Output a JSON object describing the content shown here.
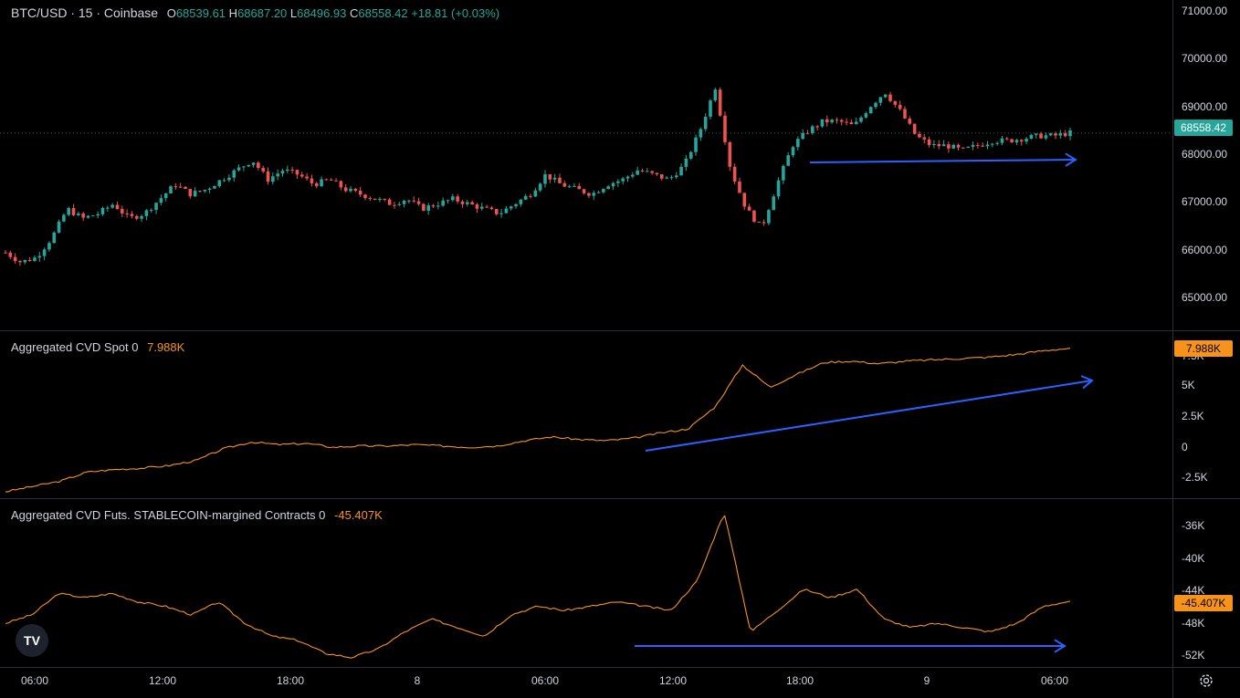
{
  "header": {
    "symbol": "BTC/USD · 15 · Coinbase",
    "o_label": "O",
    "o_value": "68539.61",
    "h_label": "H",
    "h_value": "68687.20",
    "l_label": "L",
    "l_value": "68496.93",
    "c_label": "C",
    "c_value": "68558.42",
    "change": "+18.81 (+0.03%)"
  },
  "price_axis": [
    "71000.00",
    "70000.00",
    "69000.00",
    "68000.00",
    "67000.00",
    "66000.00",
    "65000.00"
  ],
  "price_tag": "68558.42",
  "spot": {
    "title": "Aggregated CVD Spot 0",
    "value": "7.988K",
    "axis": [
      "7.5K",
      "5K",
      "2.5K",
      "0",
      "-2.5K"
    ],
    "tag": "7.988K"
  },
  "futs": {
    "title": "Aggregated CVD Futs. STABLECOIN-margined Contracts 0",
    "value": "-45.407K",
    "axis": [
      "-36K",
      "-40K",
      "-44K",
      "-48K",
      "-52K"
    ],
    "tag": "-45.407K"
  },
  "time_axis": [
    "06:00",
    "12:00",
    "18:00",
    "8",
    "06:00",
    "12:00",
    "18:00",
    "9",
    "06:00"
  ],
  "logo_text": "TV",
  "colors": {
    "up": "#26a69a",
    "down": "#ef5350",
    "cvd": "#f7931a",
    "arrow": "#2962ff"
  },
  "chart_data": [
    {
      "type": "candlestick",
      "title": "BTC/USD · 15 · Coinbase",
      "ylim": [
        64500,
        71200
      ],
      "close_path": [
        66100,
        65900,
        66000,
        66400,
        67000,
        66800,
        66900,
        67100,
        66800,
        66900,
        67200,
        67500,
        67300,
        67400,
        67600,
        67800,
        68000,
        67600,
        67800,
        67700,
        67500,
        67600,
        67400,
        67300,
        67200,
        67100,
        67200,
        67000,
        67100,
        67200,
        67100,
        67000,
        66900,
        67100,
        67300,
        67700,
        67500,
        67400,
        67300,
        67500,
        67600,
        67800,
        67700,
        67600,
        67900,
        68600,
        69500,
        67800,
        67000,
        66600,
        67500,
        68300,
        68600,
        68800,
        68800,
        68700,
        69100,
        69400,
        69000,
        68500,
        68300,
        68300,
        68200,
        68300,
        68400,
        68400,
        68450,
        68500,
        68500,
        68560
      ],
      "last": {
        "open": 68539.61,
        "high": 68687.2,
        "low": 68496.93,
        "close": 68558.42
      }
    },
    {
      "type": "line",
      "title": "Aggregated CVD Spot 0",
      "ylim": [
        -3500,
        8800
      ],
      "values": [
        -3000,
        -2600,
        -2200,
        -1500,
        -1300,
        -1200,
        -1000,
        -600,
        300,
        800,
        600,
        700,
        400,
        500,
        500,
        600,
        500,
        400,
        500,
        900,
        1200,
        1000,
        900,
        1100,
        1500,
        1800,
        3500,
        6700,
        5000,
        6000,
        6900,
        7000,
        6800,
        7000,
        7100,
        7200,
        7300,
        7500,
        7800,
        7988
      ]
    },
    {
      "type": "line",
      "title": "Aggregated CVD Futs. STABLECOIN-margined Contracts 0",
      "ylim": [
        -53000,
        -34000
      ],
      "values": [
        -48000,
        -47000,
        -44500,
        -45000,
        -44500,
        -45500,
        -46000,
        -47000,
        -45500,
        -48000,
        -49500,
        -50000,
        -51500,
        -52000,
        -51000,
        -49000,
        -47500,
        -48500,
        -49500,
        -47000,
        -46000,
        -46500,
        -46000,
        -45500,
        -46000,
        -46500,
        -43000,
        -35000,
        -49000,
        -46500,
        -44000,
        -45000,
        -44000,
        -47500,
        -48500,
        -48000,
        -48500,
        -49000,
        -48000,
        -46000,
        -45407
      ]
    }
  ]
}
